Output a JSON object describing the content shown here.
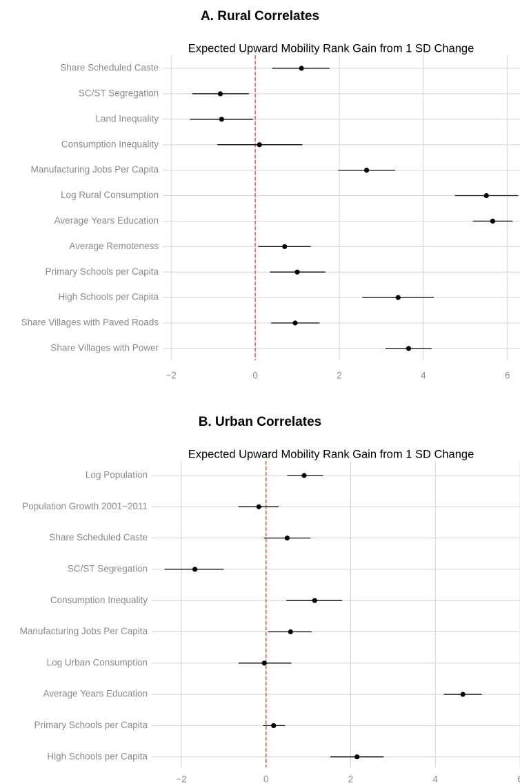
{
  "chart_data": [
    {
      "type": "scatter",
      "title": "A. Rural Correlates",
      "subtitle": "Expected Upward Mobility Rank Gain from 1 SD Change",
      "xlim": [
        -2.2,
        6.3
      ],
      "x_ticks": [
        "−2",
        "0",
        "2",
        "4",
        "6"
      ],
      "x_tick_values": [
        -2,
        0,
        2,
        4,
        6
      ],
      "reference_line": 0,
      "reference_color": "#e8392f",
      "categories": [
        "Share Scheduled Caste",
        "SC/ST Segregation",
        "Land Inequality",
        "Consumption Inequality",
        "Manufacturing Jobs Per Capita",
        "Log Rural Consumption",
        "Average Years Education",
        "Average Remoteness",
        "Primary Schools per Capita",
        "High Schools per Capita",
        "Share Villages with Paved Roads",
        "Share Villages with Power"
      ],
      "estimates": [
        1.1,
        -0.83,
        -0.8,
        0.1,
        2.65,
        5.5,
        5.65,
        0.7,
        1.0,
        3.4,
        0.95,
        3.65
      ],
      "ci_low": [
        0.4,
        -1.5,
        -1.55,
        -0.9,
        1.97,
        4.75,
        5.18,
        0.07,
        0.35,
        2.55,
        0.38,
        3.1
      ],
      "ci_high": [
        1.77,
        -0.15,
        -0.05,
        1.12,
        3.33,
        6.25,
        6.12,
        1.32,
        1.67,
        4.25,
        1.53,
        4.2
      ]
    },
    {
      "type": "scatter",
      "title": "B. Urban Correlates",
      "subtitle": "Expected Upward Mobility Rank Gain from 1 SD Change",
      "xlim": [
        -2.7,
        6.0
      ],
      "x_ticks": [
        "−2",
        "0",
        "2",
        "4",
        "6"
      ],
      "x_tick_values": [
        -2,
        0,
        2,
        4,
        6
      ],
      "reference_line": 0,
      "reference_color": "#e8392f",
      "categories": [
        "Log Population",
        "Population Growth 2001−2011",
        "Share Scheduled Caste",
        "SC/ST Segregation",
        "Consumption Inequality",
        "Manufacturing Jobs Per Capita",
        "Log Urban Consumption",
        "Average Years Education",
        "Primary Schools per Capita",
        "High Schools per Capita"
      ],
      "estimates": [
        0.9,
        -0.17,
        0.5,
        -1.68,
        1.15,
        0.58,
        -0.04,
        4.65,
        0.18,
        2.15
      ],
      "ci_low": [
        0.5,
        -0.65,
        -0.05,
        -2.4,
        0.48,
        0.05,
        -0.65,
        4.2,
        -0.07,
        1.52
      ],
      "ci_high": [
        1.35,
        0.3,
        1.05,
        -1.0,
        1.8,
        1.08,
        0.6,
        5.1,
        0.45,
        2.78
      ]
    }
  ]
}
